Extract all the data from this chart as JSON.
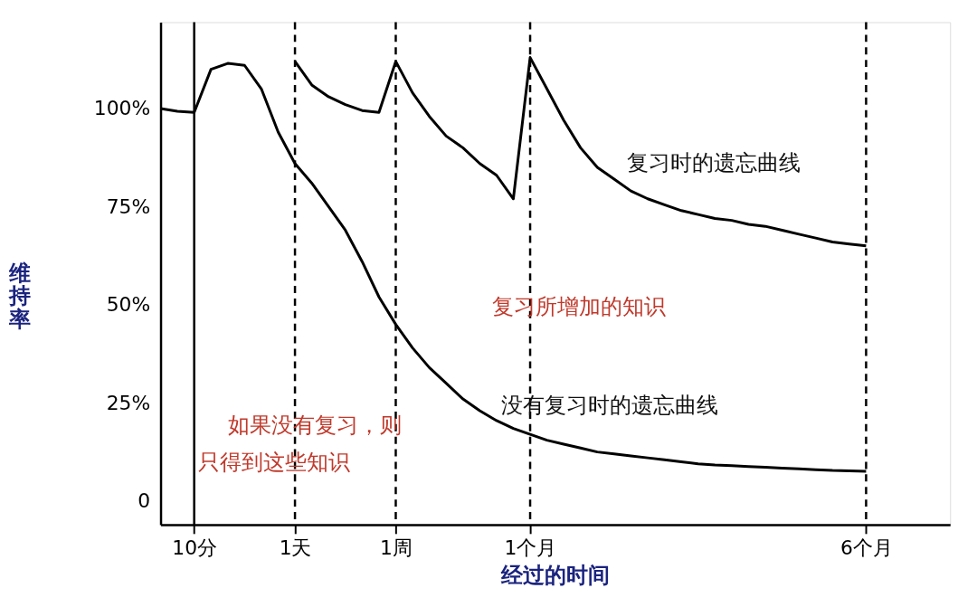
{
  "chart_data": {
    "type": "line",
    "xlabel": "经过的时间",
    "ylabel": "维持率",
    "categories": [
      null,
      null,
      "10分",
      null,
      null,
      null,
      null,
      null,
      "1天",
      null,
      null,
      null,
      null,
      null,
      "1周",
      null,
      null,
      null,
      null,
      null,
      null,
      null,
      "1个月",
      null,
      null,
      null,
      null,
      null,
      null,
      null,
      null,
      null,
      null,
      null,
      null,
      null,
      null,
      null,
      null,
      null,
      null,
      null,
      "6个月",
      null,
      null,
      null,
      null,
      null
    ],
    "ylim": [
      -6,
      122
    ],
    "yticks": [
      {
        "value": 0,
        "label": "0"
      },
      {
        "value": 25,
        "label": "25%"
      },
      {
        "value": 50,
        "label": "50%"
      },
      {
        "value": 75,
        "label": "75%"
      },
      {
        "value": 100,
        "label": "100%"
      }
    ],
    "grid": false,
    "marker": "none",
    "line_style": "solid",
    "series": [
      {
        "color": "#000000",
        "values": [
          100,
          99.3,
          99,
          110,
          111.5,
          111,
          105,
          94,
          86,
          81,
          75,
          69,
          61,
          52,
          45,
          39,
          34,
          30,
          26,
          23,
          20.5,
          18.5,
          17,
          15.5,
          14.5,
          13.5,
          12.5,
          12,
          11.5,
          11,
          10.5,
          10,
          9.5,
          9.2,
          9,
          8.8,
          8.6,
          8.4,
          8.2,
          8,
          7.8,
          7.7,
          7.6,
          null,
          null,
          null,
          null,
          null
        ]
      },
      {
        "color": "#000000",
        "values": [
          null,
          null,
          null,
          null,
          null,
          null,
          null,
          null,
          112,
          106,
          103,
          101,
          99.5,
          99,
          112,
          104,
          98,
          93,
          90,
          86,
          83,
          77,
          113,
          105,
          97,
          90,
          85,
          82,
          79,
          77,
          75.5,
          74,
          73,
          72,
          71.5,
          70.5,
          70,
          69,
          68,
          67,
          66,
          65.5,
          65,
          null,
          null,
          null,
          null,
          null
        ]
      }
    ],
    "ref_lines": [
      {
        "axis": "x",
        "value": "10分",
        "line_style": "solid"
      },
      {
        "axis": "x",
        "value": "1天",
        "line_style": "dashed"
      },
      {
        "axis": "x",
        "value": "1周",
        "line_style": "dashed"
      },
      {
        "axis": "x",
        "value": "1个月",
        "line_style": "dashed"
      },
      {
        "axis": "x",
        "value": "6个月",
        "line_style": "dashed"
      }
    ],
    "annotations": [
      "复习时的遗忘曲线",
      "复习所增加的知识",
      "没有复习时的遗忘曲线",
      "如果没有复习，则",
      "只得到这些知识"
    ]
  }
}
